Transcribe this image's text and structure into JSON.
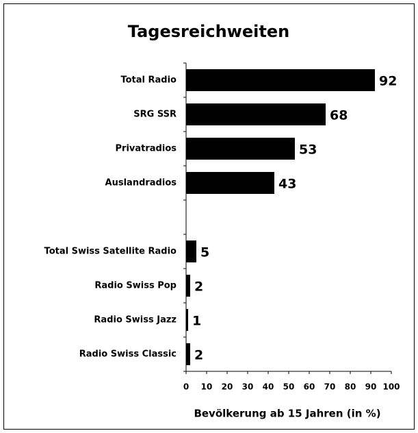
{
  "chart_data": {
    "type": "bar",
    "orientation": "horizontal",
    "title": "Tagesreichweiten",
    "categories": [
      "Total Radio",
      "SRG SSR",
      "Privatradios",
      "Auslandradios",
      null,
      "Total Swiss Satellite Radio",
      "Radio Swiss Pop",
      "Radio Swiss Jazz",
      "Radio Swiss Classic"
    ],
    "values": [
      92,
      68,
      53,
      43,
      null,
      5,
      2,
      1,
      2
    ],
    "color": "#000000",
    "xlim": [
      0,
      100
    ],
    "xticks": [
      0,
      10,
      20,
      30,
      40,
      50,
      60,
      70,
      80,
      90,
      100
    ],
    "x_label": "Bevölkerung ab 15 Jahren (in %)",
    "grid": false
  }
}
